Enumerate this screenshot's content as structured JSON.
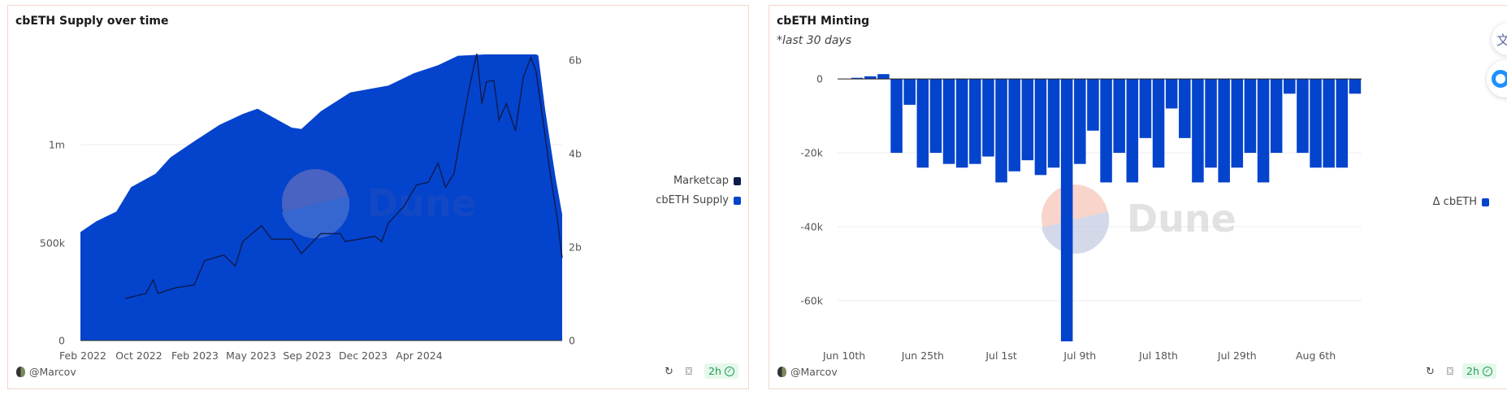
{
  "colors": {
    "supply": "#0443cc",
    "marketcap": "#0d1b4c",
    "bars": "#0443cc",
    "border": "#f2d6cb",
    "badge_text": "#1f9d55"
  },
  "watermark": "Dune",
  "cards": {
    "left": {
      "title": "cbETH Supply over time",
      "author": "@Marcov",
      "freshness": "2h",
      "icons": [
        "rotate-icon",
        "camera-icon",
        "check-circle-icon"
      ]
    },
    "right": {
      "title": "cbETH Minting",
      "subtitle": "*last 30 days",
      "author": "@Marcov",
      "freshness": "2h",
      "icons": [
        "rotate-icon",
        "camera-icon",
        "check-circle-icon"
      ]
    }
  },
  "float_buttons": {
    "translate_glyph": "文",
    "assistant_icon": "assistant-icon"
  },
  "chart_data": [
    {
      "type": "area+line",
      "title": "cbETH Supply over time",
      "legend": {
        "placement": "right",
        "entries": [
          "Marketcap",
          "cbETH Supply"
        ]
      },
      "x_tick_labels": [
        "Feb 2022",
        "Oct 2022",
        "Feb 2023",
        "May 2023",
        "Sep 2023",
        "Dec 2023",
        "Apr 2024"
      ],
      "y_left": {
        "ticks": [
          0,
          500000,
          1000000
        ],
        "tick_labels": [
          "0",
          "500k",
          "1m"
        ],
        "ylim": [
          0,
          1500000
        ]
      },
      "y_right": {
        "ticks": [
          0,
          2000000000,
          4000000000,
          6000000000
        ],
        "tick_labels": [
          "0",
          "2b",
          "4b",
          "6b"
        ],
        "ylim": [
          0,
          6290000000
        ]
      },
      "grid": true,
      "series": [
        {
          "name": "cbETH Supply",
          "type": "area",
          "axis": "left",
          "points": [
            [
              "2022-06-08",
              554000
            ],
            [
              "2022-07-06",
              609000
            ],
            [
              "2022-08-10",
              658000
            ],
            [
              "2022-09-05",
              783000
            ],
            [
              "2022-10-18",
              852000
            ],
            [
              "2022-11-13",
              935000
            ],
            [
              "2022-12-25",
              1018000
            ],
            [
              "2023-02-07",
              1101000
            ],
            [
              "2023-03-20",
              1157000
            ],
            [
              "2023-04-15",
              1184000
            ],
            [
              "2023-05-10",
              1143000
            ],
            [
              "2023-06-14",
              1087000
            ],
            [
              "2023-07-01",
              1080000
            ],
            [
              "2023-08-04",
              1170000
            ],
            [
              "2023-09-25",
              1267000
            ],
            [
              "2023-12-01",
              1302000
            ],
            [
              "2024-01-14",
              1364000
            ],
            [
              "2024-02-26",
              1406000
            ],
            [
              "2024-04-01",
              1454000
            ],
            [
              "2024-05-21",
              1461000
            ],
            [
              "2024-08-16",
              1461000
            ],
            [
              "2024-08-20",
              1455000
            ],
            [
              "2024-09-01",
              1180000
            ],
            [
              "2024-09-19",
              838000
            ],
            [
              "2024-10-01",
              644000
            ]
          ]
        },
        {
          "name": "Marketcap",
          "type": "line",
          "axis": "right",
          "points": [
            [
              "2022-08-26",
              900000000
            ],
            [
              "2022-10-01",
              1010000000
            ],
            [
              "2022-10-14",
              1300000000
            ],
            [
              "2022-10-22",
              1010000000
            ],
            [
              "2022-11-22",
              1130000000
            ],
            [
              "2022-12-25",
              1190000000
            ],
            [
              "2023-01-12",
              1710000000
            ],
            [
              "2023-02-15",
              1830000000
            ],
            [
              "2023-03-07",
              1590000000
            ],
            [
              "2023-03-20",
              2120000000
            ],
            [
              "2023-04-22",
              2460000000
            ],
            [
              "2023-05-10",
              2170000000
            ],
            [
              "2023-06-14",
              2170000000
            ],
            [
              "2023-07-01",
              1860000000
            ],
            [
              "2023-08-04",
              2290000000
            ],
            [
              "2023-09-07",
              2290000000
            ],
            [
              "2023-09-16",
              2120000000
            ],
            [
              "2023-11-07",
              2230000000
            ],
            [
              "2023-11-19",
              2120000000
            ],
            [
              "2023-12-01",
              2520000000
            ],
            [
              "2023-12-28",
              2870000000
            ],
            [
              "2024-01-19",
              3330000000
            ],
            [
              "2024-02-09",
              3390000000
            ],
            [
              "2024-02-26",
              3800000000
            ],
            [
              "2024-03-10",
              3280000000
            ],
            [
              "2024-03-25",
              3570000000
            ],
            [
              "2024-04-08",
              4550000000
            ],
            [
              "2024-04-21",
              5420000000
            ],
            [
              "2024-05-04",
              6140000000
            ],
            [
              "2024-05-13",
              5070000000
            ],
            [
              "2024-05-21",
              5540000000
            ],
            [
              "2024-06-03",
              5570000000
            ],
            [
              "2024-06-12",
              4720000000
            ],
            [
              "2024-06-25",
              5070000000
            ],
            [
              "2024-07-11",
              4490000000
            ],
            [
              "2024-07-25",
              5650000000
            ],
            [
              "2024-08-07",
              6060000000
            ],
            [
              "2024-08-16",
              5770000000
            ],
            [
              "2024-09-01",
              4380000000
            ],
            [
              "2024-09-10",
              3570000000
            ],
            [
              "2024-09-22",
              2640000000
            ],
            [
              "2024-10-01",
              1770000000
            ]
          ]
        }
      ]
    },
    {
      "type": "bar",
      "title": "cbETH Minting",
      "subtitle": "*last 30 days",
      "legend": {
        "placement": "right",
        "entries": [
          "Δ cbETH"
        ]
      },
      "x_tick_labels": [
        "Jun 10th",
        "Jun 25th",
        "Jul 1st",
        "Jul 9th",
        "Jul 18th",
        "Jul 29th",
        "Aug 6th"
      ],
      "x_tick_every": 6,
      "y": {
        "ticks": [
          0,
          -20000,
          -40000,
          -60000
        ],
        "tick_labels": [
          "0",
          "-20k",
          "-40k",
          "-60k"
        ],
        "ylim": [
          -71000,
          2000
        ]
      },
      "grid": true,
      "series": [
        {
          "name": "Δ cbETH",
          "values": [
            null,
            300,
            700,
            1300,
            -20000,
            -7000,
            -24000,
            -20000,
            -23000,
            -24000,
            -23000,
            -21000,
            -28000,
            -25000,
            -22000,
            -26000,
            -24000,
            -71000,
            -23000,
            -14000,
            -28000,
            -20000,
            -28000,
            -16000,
            -24000,
            -8000,
            -16000,
            -28000,
            -24000,
            -28000,
            -24000,
            -20000,
            -28000,
            -20000,
            -4000,
            -20000,
            -24000,
            -24000,
            -24000,
            -4000
          ]
        }
      ]
    }
  ]
}
